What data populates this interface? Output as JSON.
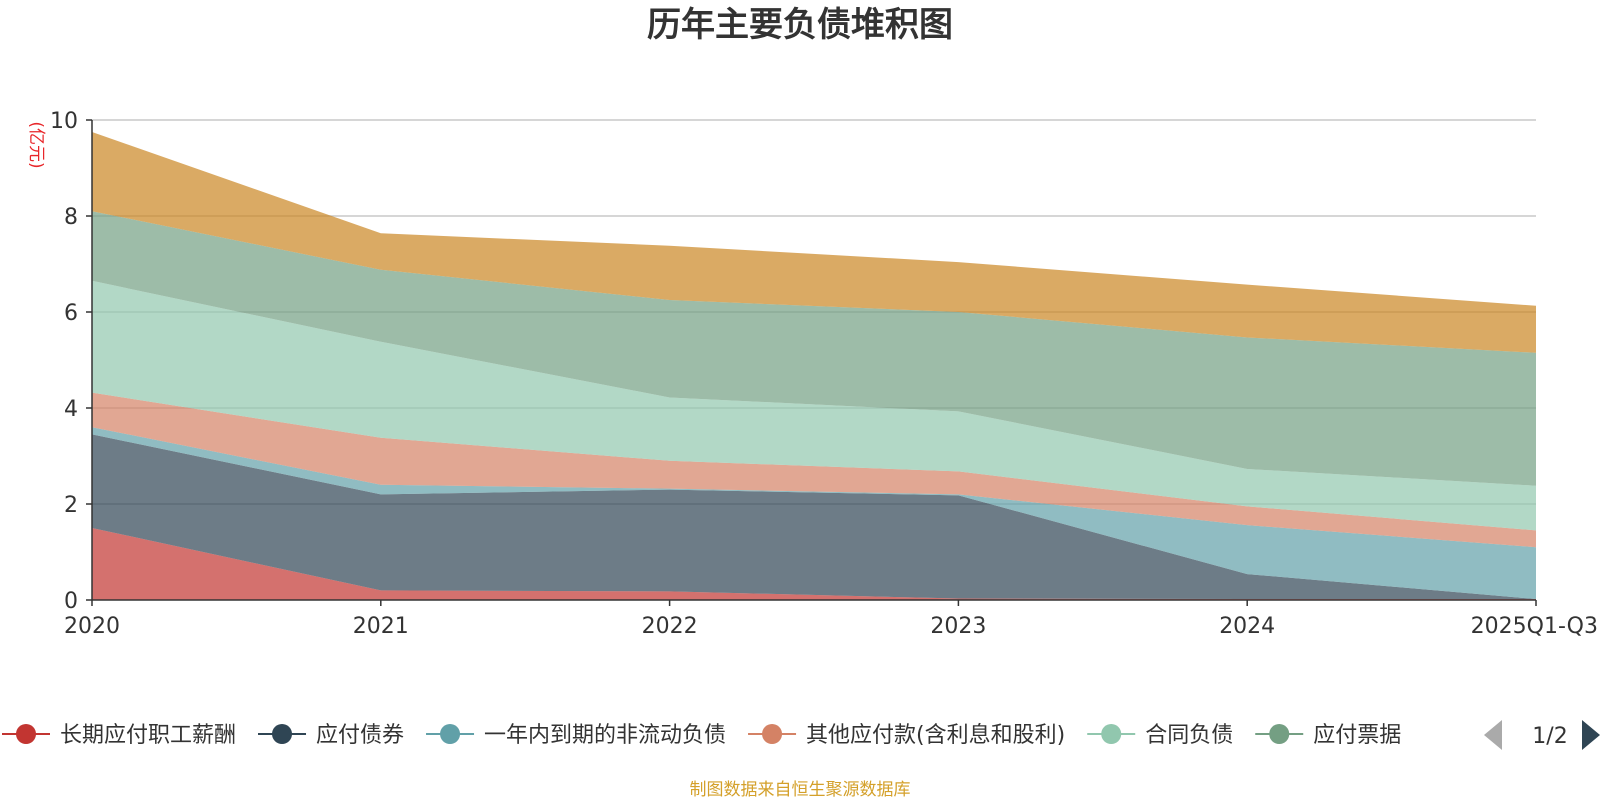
{
  "chart_data": {
    "type": "area",
    "stacked": true,
    "title": "历年主要负债堆积图",
    "unit_label": "(亿元)",
    "categories": [
      "2020",
      "2021",
      "2022",
      "2023",
      "2024",
      "2025Q1-Q3"
    ],
    "ylim": [
      0,
      10
    ],
    "yticks": [
      0,
      2,
      4,
      6,
      8,
      10
    ],
    "grid": true,
    "legend_position": "bottom",
    "series": [
      {
        "name": "长期应付职工薪酬",
        "color": "#c23531",
        "values": [
          1.5,
          0.2,
          0.18,
          0.03,
          0.02,
          0.02
        ]
      },
      {
        "name": "应付债券",
        "color": "#2f4554",
        "values": [
          1.95,
          2.0,
          2.12,
          2.15,
          0.52,
          0.0
        ]
      },
      {
        "name": "一年内到期的非流动负债",
        "color": "#61a0a8",
        "values": [
          0.15,
          0.2,
          0.02,
          0.02,
          1.02,
          1.08
        ]
      },
      {
        "name": "其他应付款(含利息和股利)",
        "color": "#d48265",
        "values": [
          0.72,
          0.98,
          0.58,
          0.48,
          0.39,
          0.35
        ]
      },
      {
        "name": "合同负债",
        "color": "#91c7ae",
        "values": [
          2.33,
          2.0,
          1.32,
          1.25,
          0.78,
          0.93
        ]
      },
      {
        "name": "应付票据",
        "color": "#749f83",
        "values": [
          1.45,
          1.5,
          2.03,
          2.07,
          2.74,
          2.77
        ]
      },
      {
        "name": "",
        "color": "#ca8622",
        "values": [
          1.65,
          0.76,
          1.13,
          1.04,
          1.1,
          0.98
        ]
      }
    ],
    "legend_visible": [
      "长期应付职工薪酬",
      "应付债券",
      "一年内到期的非流动负债",
      "其他应付款(含利息和股利)",
      "合同负债",
      "应付票据"
    ],
    "legend_page": "1/2"
  },
  "footer": {
    "source": "制图数据来自恒生聚源数据库"
  }
}
